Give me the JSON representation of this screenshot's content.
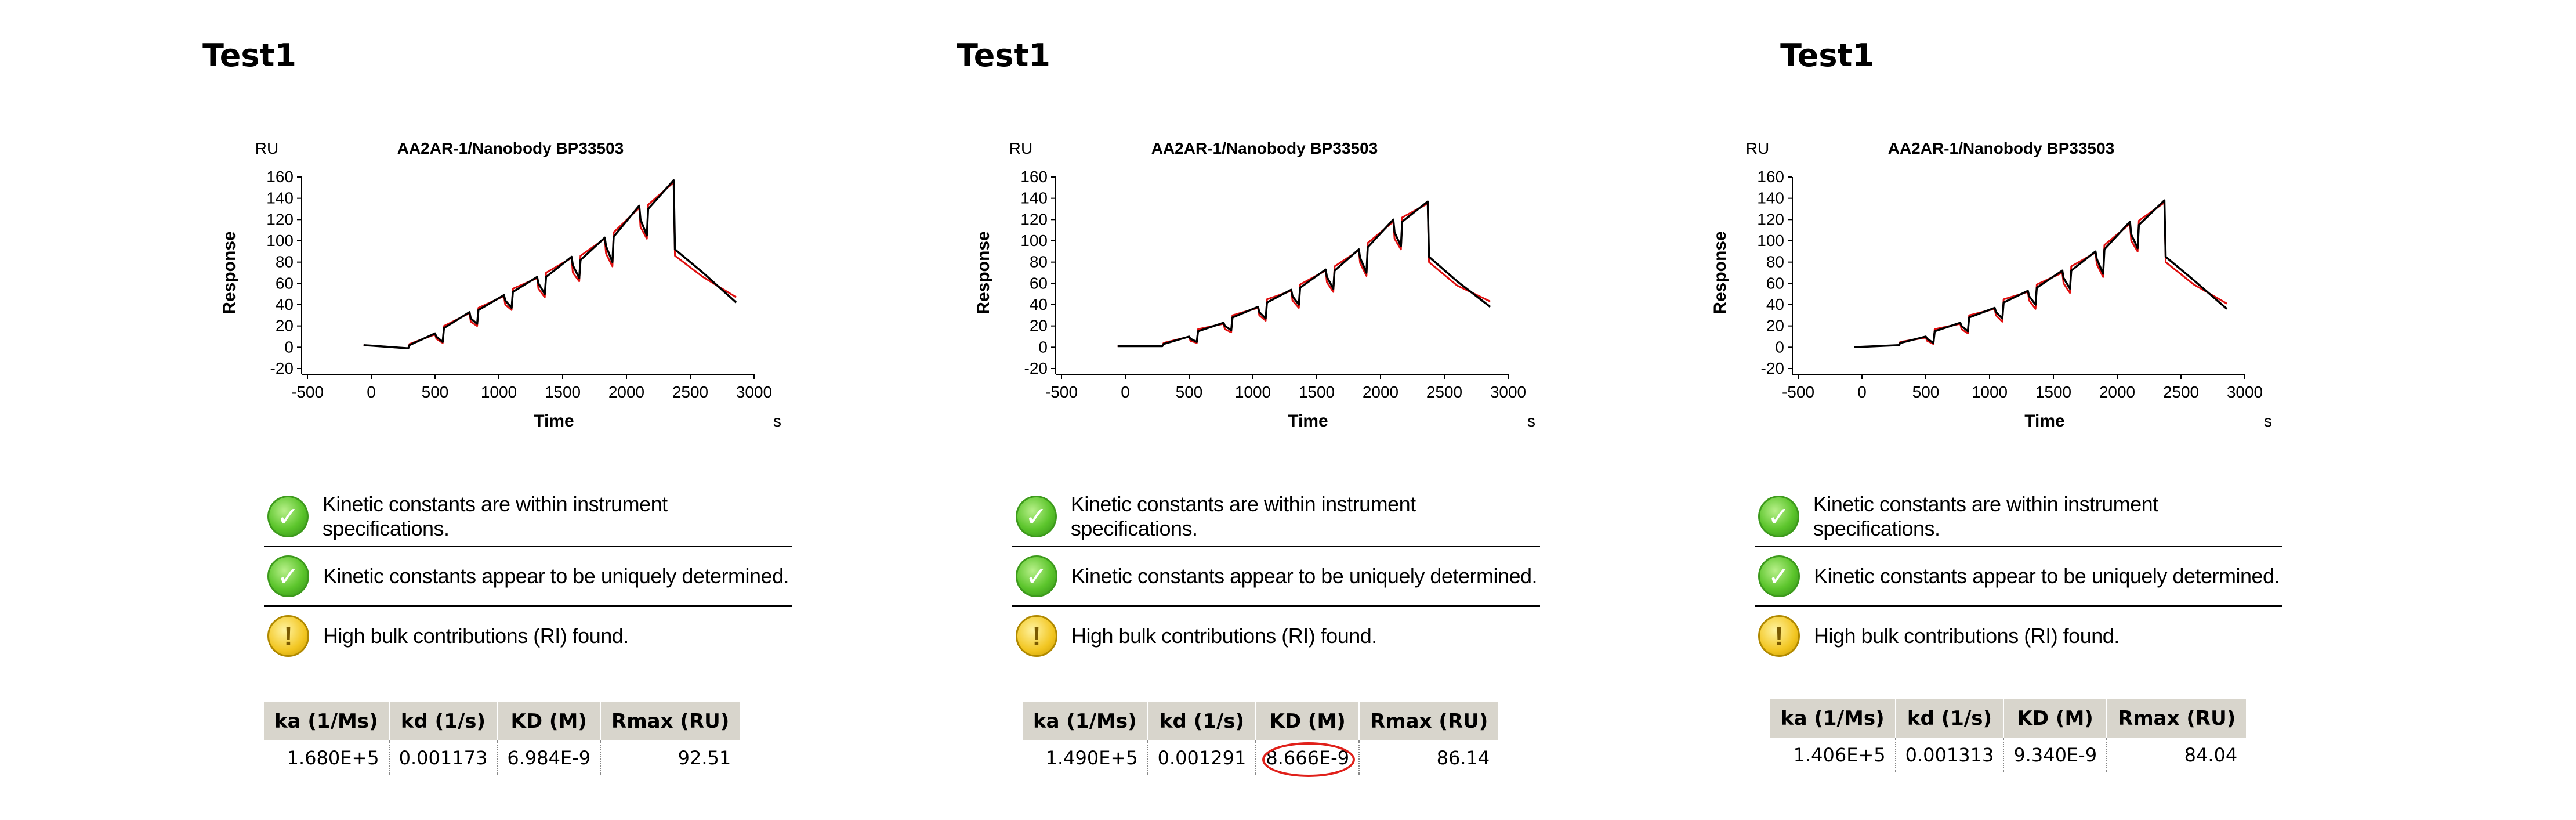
{
  "panels": [
    {
      "title": "Test1",
      "checks": [
        {
          "status": "ok",
          "icon": "check-icon",
          "text": "Kinetic constants are within instrument specifications."
        },
        {
          "status": "ok",
          "icon": "check-icon",
          "text": "Kinetic constants appear to be uniquely determined."
        },
        {
          "status": "warn",
          "icon": "exclamation-icon",
          "text": "High bulk contributions (RI) found."
        }
      ],
      "table": {
        "headers": [
          "ka (1/Ms)",
          "kd (1/s)",
          "KD (M)",
          "Rmax (RU)"
        ],
        "row": [
          "1.680E+5",
          "0.001173",
          "6.984E-9",
          "92.51"
        ],
        "highlight": null
      }
    },
    {
      "title": "Test1",
      "checks": [
        {
          "status": "ok",
          "icon": "check-icon",
          "text": "Kinetic constants are within instrument specifications."
        },
        {
          "status": "ok",
          "icon": "check-icon",
          "text": "Kinetic constants appear to be uniquely determined."
        },
        {
          "status": "warn",
          "icon": "exclamation-icon",
          "text": "High bulk contributions (RI) found."
        }
      ],
      "table": {
        "headers": [
          "ka (1/Ms)",
          "kd (1/s)",
          "KD (M)",
          "Rmax (RU)"
        ],
        "row": [
          "1.490E+5",
          "0.001291",
          "8.666E-9",
          "86.14"
        ],
        "highlight": 2
      }
    },
    {
      "title": "Test1",
      "checks": [
        {
          "status": "ok",
          "icon": "check-icon",
          "text": "Kinetic constants are within instrument specifications."
        },
        {
          "status": "ok",
          "icon": "check-icon",
          "text": "Kinetic constants appear to be uniquely determined."
        },
        {
          "status": "warn",
          "icon": "exclamation-icon",
          "text": "High bulk contributions (RI) found."
        }
      ],
      "table": {
        "headers": [
          "ka (1/Ms)",
          "kd (1/s)",
          "KD (M)",
          "Rmax (RU)"
        ],
        "row": [
          "1.406E+5",
          "0.001313",
          "9.340E-9",
          "84.04"
        ],
        "highlight": null
      }
    }
  ],
  "colors": {
    "fit": "#000000",
    "data": "#e01010",
    "highlight": "#e0201a"
  },
  "chart_data": [
    {
      "type": "line",
      "title": "AA2AR-1/Nanobody BP33503",
      "xlabel": "Time",
      "xunit": "s",
      "ylabel": "Response",
      "yunit": "RU",
      "xlim": [
        -500,
        3000
      ],
      "ylim": [
        -20,
        160
      ],
      "xticks": [
        -500,
        0,
        500,
        1000,
        1500,
        2000,
        2500,
        3000
      ],
      "yticks": [
        -20,
        0,
        20,
        40,
        60,
        80,
        100,
        120,
        140,
        160
      ],
      "grid": false,
      "series": [
        {
          "name": "",
          "color": "#000000",
          "x": [
            -60,
            290,
            300,
            500,
            510,
            560,
            570,
            770,
            780,
            830,
            840,
            1040,
            1050,
            1100,
            1110,
            1300,
            1310,
            1360,
            1370,
            1570,
            1580,
            1630,
            1640,
            1830,
            1840,
            1890,
            1900,
            2100,
            2110,
            2160,
            2170,
            2370,
            2380,
            2600,
            2860
          ],
          "y": [
            2,
            -1,
            2,
            13,
            10,
            5,
            18,
            33,
            27,
            22,
            35,
            49,
            44,
            37,
            52,
            66,
            60,
            50,
            66,
            85,
            77,
            65,
            82,
            103,
            95,
            80,
            104,
            133,
            120,
            105,
            130,
            157,
            92,
            70,
            42
          ]
        },
        {
          "name": "",
          "color": "#e01010",
          "x": [
            -60,
            290,
            300,
            500,
            510,
            560,
            570,
            770,
            780,
            830,
            840,
            1040,
            1050,
            1100,
            1110,
            1300,
            1310,
            1360,
            1370,
            1570,
            1580,
            1630,
            1640,
            1830,
            1840,
            1890,
            1900,
            2100,
            2110,
            2160,
            2170,
            2370,
            2380,
            2600,
            2860
          ],
          "y": [
            2,
            -1,
            3,
            12,
            8,
            4,
            20,
            32,
            24,
            20,
            37,
            48,
            40,
            35,
            55,
            65,
            55,
            47,
            70,
            84,
            70,
            62,
            86,
            102,
            88,
            76,
            108,
            131,
            113,
            102,
            134,
            155,
            86,
            66,
            47
          ]
        }
      ]
    },
    {
      "type": "line",
      "title": "AA2AR-1/Nanobody BP33503",
      "xlabel": "Time",
      "xunit": "s",
      "ylabel": "Response",
      "yunit": "RU",
      "xlim": [
        -500,
        3000
      ],
      "ylim": [
        -20,
        160
      ],
      "xticks": [
        -500,
        0,
        500,
        1000,
        1500,
        2000,
        2500,
        3000
      ],
      "yticks": [
        -20,
        0,
        20,
        40,
        60,
        80,
        100,
        120,
        140,
        160
      ],
      "grid": false,
      "series": [
        {
          "name": "",
          "color": "#000000",
          "x": [
            -60,
            290,
            300,
            500,
            510,
            560,
            570,
            770,
            780,
            830,
            840,
            1040,
            1050,
            1100,
            1110,
            1300,
            1310,
            1360,
            1370,
            1570,
            1580,
            1630,
            1640,
            1830,
            1840,
            1890,
            1900,
            2100,
            2110,
            2160,
            2170,
            2370,
            2380,
            2600,
            2860
          ],
          "y": [
            1,
            1,
            3,
            10,
            8,
            5,
            15,
            23,
            20,
            16,
            28,
            38,
            33,
            27,
            42,
            54,
            48,
            40,
            56,
            73,
            66,
            55,
            72,
            92,
            84,
            70,
            94,
            120,
            108,
            95,
            118,
            137,
            85,
            62,
            38
          ]
        },
        {
          "name": "",
          "color": "#e01010",
          "x": [
            -60,
            290,
            300,
            500,
            510,
            560,
            570,
            770,
            780,
            830,
            840,
            1040,
            1050,
            1100,
            1110,
            1300,
            1310,
            1360,
            1370,
            1570,
            1580,
            1630,
            1640,
            1830,
            1840,
            1890,
            1900,
            2100,
            2110,
            2160,
            2170,
            2370,
            2380,
            2600,
            2860
          ],
          "y": [
            1,
            1,
            4,
            10,
            6,
            4,
            17,
            22,
            17,
            14,
            30,
            37,
            30,
            25,
            45,
            53,
            44,
            37,
            59,
            72,
            61,
            52,
            76,
            91,
            79,
            67,
            98,
            118,
            102,
            92,
            122,
            135,
            80,
            58,
            43
          ]
        }
      ]
    },
    {
      "type": "line",
      "title": "AA2AR-1/Nanobody BP33503",
      "xlabel": "Time",
      "xunit": "s",
      "ylabel": "Response",
      "yunit": "RU",
      "xlim": [
        -500,
        3000
      ],
      "ylim": [
        -20,
        160
      ],
      "xticks": [
        -500,
        0,
        500,
        1000,
        1500,
        2000,
        2500,
        3000
      ],
      "yticks": [
        -20,
        0,
        20,
        40,
        60,
        80,
        100,
        120,
        140,
        160
      ],
      "grid": false,
      "series": [
        {
          "name": "",
          "color": "#000000",
          "x": [
            -60,
            290,
            300,
            500,
            510,
            560,
            570,
            770,
            780,
            830,
            840,
            1040,
            1050,
            1100,
            1110,
            1300,
            1310,
            1360,
            1370,
            1570,
            1580,
            1630,
            1640,
            1830,
            1840,
            1890,
            1900,
            2100,
            2110,
            2160,
            2170,
            2370,
            2380,
            2600,
            2860
          ],
          "y": [
            0,
            2,
            4,
            10,
            8,
            4,
            15,
            23,
            20,
            15,
            28,
            37,
            33,
            27,
            42,
            53,
            48,
            40,
            56,
            72,
            65,
            55,
            72,
            90,
            83,
            69,
            92,
            118,
            106,
            93,
            115,
            138,
            85,
            63,
            36
          ]
        },
        {
          "name": "",
          "color": "#e01010",
          "x": [
            -60,
            290,
            300,
            500,
            510,
            560,
            570,
            770,
            780,
            830,
            840,
            1040,
            1050,
            1100,
            1110,
            1300,
            1310,
            1360,
            1370,
            1570,
            1580,
            1630,
            1640,
            1830,
            1840,
            1890,
            1900,
            2100,
            2110,
            2160,
            2170,
            2370,
            2380,
            2600,
            2860
          ],
          "y": [
            0,
            2,
            5,
            9,
            6,
            3,
            17,
            22,
            17,
            13,
            30,
            36,
            30,
            24,
            45,
            52,
            44,
            36,
            59,
            70,
            60,
            51,
            76,
            89,
            78,
            66,
            96,
            116,
            100,
            90,
            119,
            136,
            80,
            59,
            41
          ]
        }
      ]
    }
  ]
}
